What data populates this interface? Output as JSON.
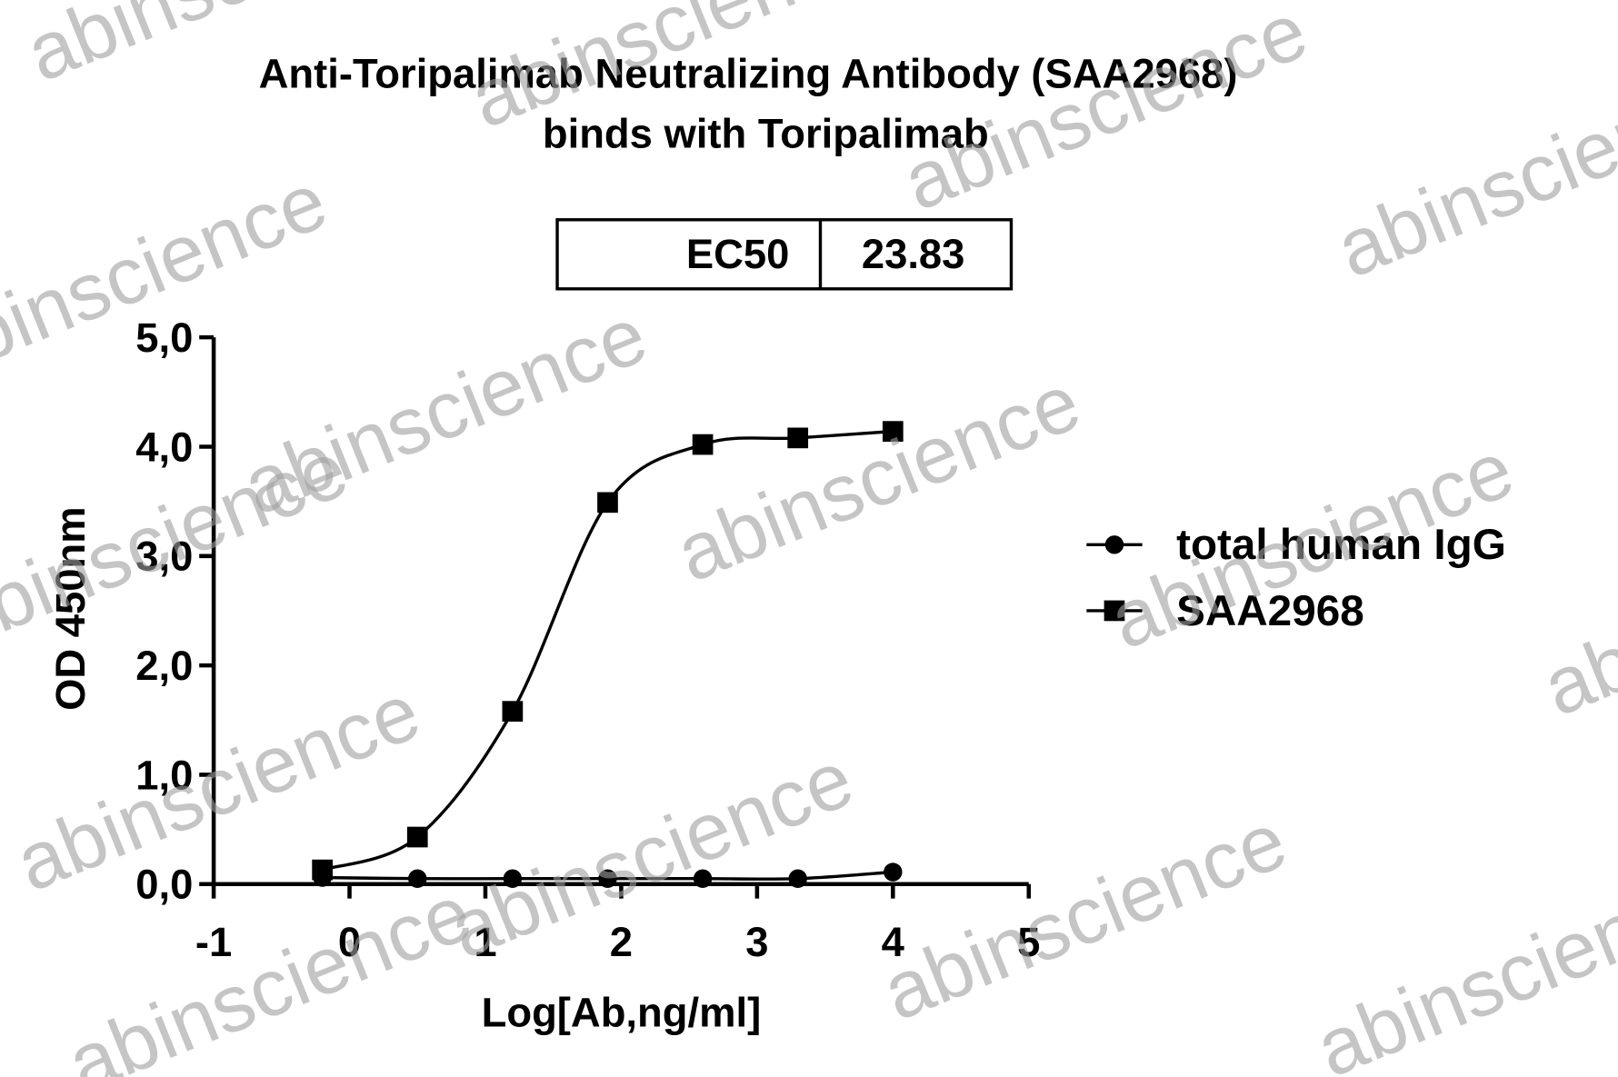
{
  "chart_data": {
    "type": "line",
    "title": [
      "Anti-Toripalimab Neutralizing Antibody (SAA2968)",
      "binds with Toripalimab"
    ],
    "ec50": {
      "label": "EC50",
      "value": 23.83
    },
    "xlabel": "Log[Ab,ng/ml]",
    "ylabel": "OD 450nm",
    "x": [
      -0.2,
      0.5,
      1.2,
      1.9,
      2.6,
      3.3,
      4.0
    ],
    "series": [
      {
        "name": "total human IgG",
        "color": "#000000",
        "marker": "circle",
        "values": [
          0.06,
          0.05,
          0.05,
          0.05,
          0.05,
          0.05,
          0.11
        ]
      },
      {
        "name": "SAA2968",
        "color": "#000000",
        "marker": "square",
        "values": [
          0.13,
          0.43,
          1.58,
          3.49,
          4.02,
          4.08,
          4.14
        ]
      }
    ],
    "xlim": [
      -1,
      5
    ],
    "xticks": [
      -1,
      0,
      1,
      2,
      3,
      4,
      5
    ],
    "ylim": [
      0,
      5
    ],
    "yticks": [
      {
        "value": 0,
        "label": "0,0"
      },
      {
        "value": 1,
        "label": "1,0"
      },
      {
        "value": 2,
        "label": "2,0"
      },
      {
        "value": 3,
        "label": "3,0"
      },
      {
        "value": 4,
        "label": "4,0"
      },
      {
        "value": 5,
        "label": "5,0"
      }
    ],
    "legend": "right",
    "watermark": "abinscience"
  }
}
